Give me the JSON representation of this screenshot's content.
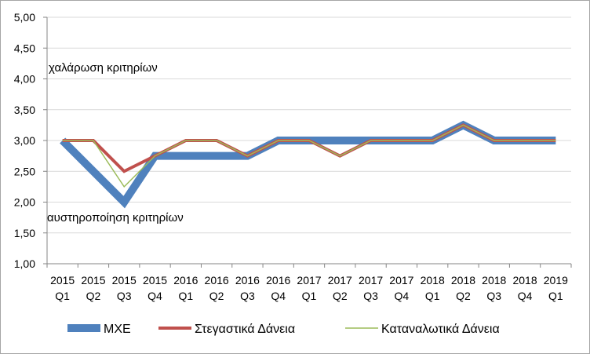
{
  "chart_data": {
    "type": "line",
    "title": "",
    "xlabel": "",
    "ylabel": "",
    "ylim": [
      1.0,
      5.0
    ],
    "yticks": [
      "1,00",
      "1,50",
      "2,00",
      "2,50",
      "3,00",
      "3,50",
      "4,00",
      "4,50",
      "5,00"
    ],
    "grid": "horizontal",
    "legend_position": "bottom",
    "categories": [
      [
        "2015",
        "Q1"
      ],
      [
        "2015",
        "Q2"
      ],
      [
        "2015",
        "Q3"
      ],
      [
        "2015",
        "Q4"
      ],
      [
        "2016",
        "Q1"
      ],
      [
        "2016",
        "Q2"
      ],
      [
        "2016",
        "Q3"
      ],
      [
        "2016",
        "Q4"
      ],
      [
        "2017",
        "Q1"
      ],
      [
        "2017",
        "Q2"
      ],
      [
        "2017",
        "Q3"
      ],
      [
        "2017",
        "Q4"
      ],
      [
        "2018",
        "Q1"
      ],
      [
        "2018",
        "Q2"
      ],
      [
        "2018",
        "Q3"
      ],
      [
        "2018",
        "Q4"
      ],
      [
        "2019",
        "Q1"
      ]
    ],
    "series": [
      {
        "name": "ΜΧΕ",
        "color": "#4f81bd",
        "values": [
          3.0,
          2.5,
          2.0,
          2.75,
          2.75,
          2.75,
          2.75,
          3.0,
          3.0,
          3.0,
          3.0,
          3.0,
          3.0,
          3.25,
          3.0,
          3.0,
          3.0
        ]
      },
      {
        "name": "Στεγαστικά Δάνεια",
        "color": "#c0504d",
        "values": [
          3.0,
          3.0,
          2.5,
          2.75,
          3.0,
          3.0,
          2.75,
          3.0,
          3.0,
          2.75,
          3.0,
          3.0,
          3.0,
          3.25,
          3.0,
          3.0,
          3.0
        ]
      },
      {
        "name": "Καταναλωτικά Δάνεια",
        "color": "#9bbb59",
        "values": [
          3.0,
          3.0,
          2.25,
          2.75,
          3.0,
          3.0,
          2.75,
          3.0,
          3.0,
          2.75,
          3.0,
          3.0,
          3.0,
          3.25,
          3.0,
          3.0,
          3.0
        ]
      }
    ],
    "annotations": {
      "top": "χαλάρωση κριτηρίων",
      "bottom": "αυστηροποίηση κριτηρίων"
    }
  }
}
